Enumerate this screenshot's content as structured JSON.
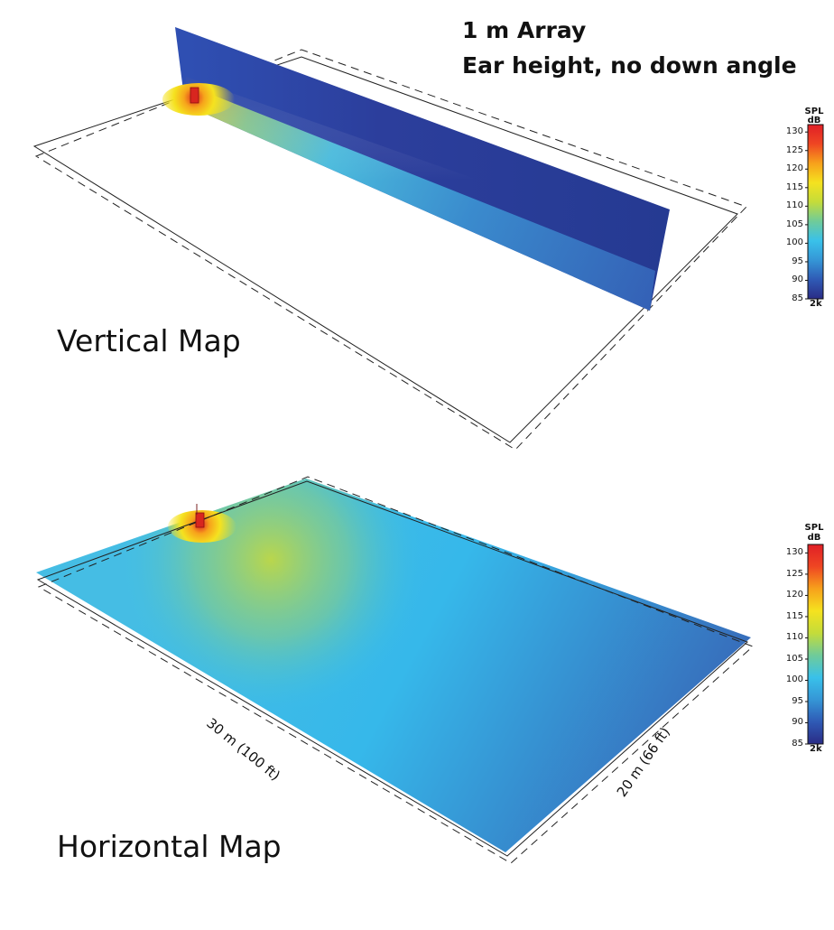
{
  "title": {
    "line1": "1 m Array",
    "line2": "Ear height, no down angle"
  },
  "maps": {
    "vertical_label": "Vertical Map",
    "horizontal_label": "Horizontal Map"
  },
  "dimensions": {
    "length": "30 m (100 ft)",
    "width": "20 m (66 ft)"
  },
  "scale": {
    "title_line1": "SPL",
    "title_line2": "dB",
    "ticks": [
      "130",
      "125",
      "120",
      "115",
      "110",
      "105",
      "100",
      "95",
      "90",
      "85"
    ],
    "min": 85,
    "max": 132,
    "footer": "2k",
    "colors": [
      "#2a2c86",
      "#2f5ab5",
      "#3596d6",
      "#39c1ea",
      "#6fcb9a",
      "#c4dc3a",
      "#f5e21f",
      "#f7a11b",
      "#ef4623",
      "#e01f26"
    ]
  }
}
